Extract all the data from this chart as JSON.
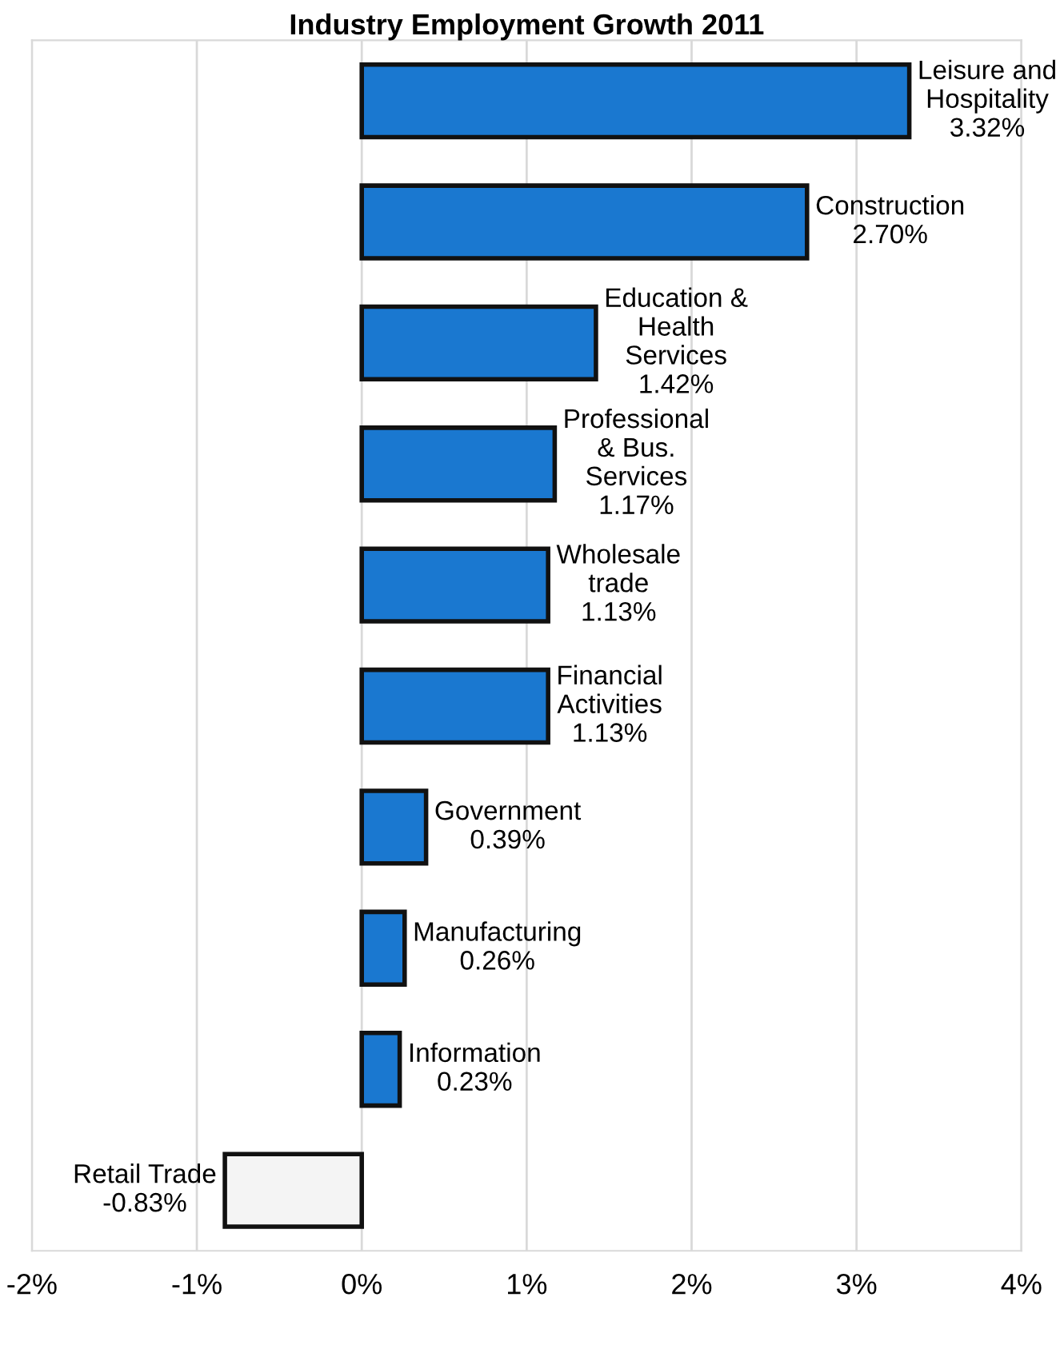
{
  "chart_data": {
    "type": "bar",
    "orientation": "horizontal",
    "title": "Industry Employment Growth 2011",
    "categories": [
      "Leisure and\nHospitality",
      "Construction",
      "Education &\nHealth\nServices",
      "Professional\n& Bus.\nServices",
      "Wholesale\ntrade",
      "Financial\nActivities",
      "Government",
      "Manufacturing",
      "Information",
      "Retail Trade"
    ],
    "values": [
      3.32,
      2.7,
      1.42,
      1.17,
      1.13,
      1.13,
      0.39,
      0.26,
      0.23,
      -0.83
    ],
    "colors": [
      "#1a78d0",
      "#1a78d0",
      "#1a78d0",
      "#1a78d0",
      "#1a78d0",
      "#1a78d0",
      "#1a78d0",
      "#1a78d0",
      "#1a78d0",
      "#f4f4f4"
    ],
    "value_labels": [
      "3.32%",
      "2.70%",
      "1.42%",
      "1.17%",
      "1.13%",
      "1.13%",
      "0.39%",
      "0.26%",
      "0.23%",
      "-0.83%"
    ],
    "xlim": [
      -2,
      4
    ],
    "xticks": [
      {
        "value": -2,
        "label": "-2%"
      },
      {
        "value": -1,
        "label": "-1%"
      },
      {
        "value": 0,
        "label": "0%"
      },
      {
        "value": 1,
        "label": "1%"
      },
      {
        "value": 2,
        "label": "2%"
      },
      {
        "value": 3,
        "label": "3%"
      },
      {
        "value": 4,
        "label": "4%"
      }
    ],
    "grid": "x",
    "tick_labels": "x",
    "legend": false
  }
}
